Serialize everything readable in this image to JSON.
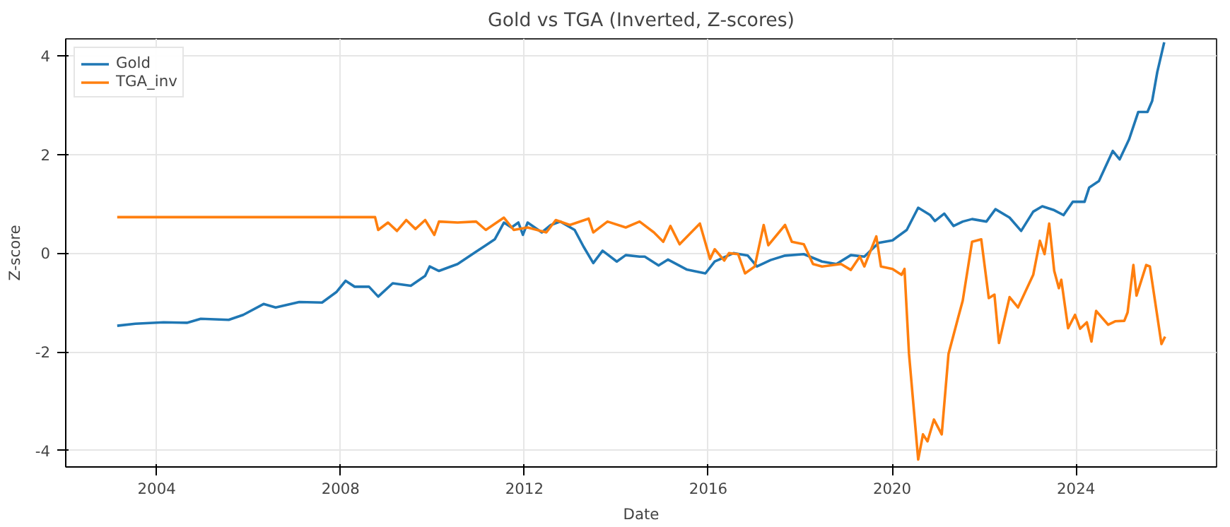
{
  "chart_data": {
    "type": "line",
    "title": "Gold vs TGA (Inverted, Z-scores)",
    "xlabel": "Date",
    "ylabel": "Z-score",
    "xlim": [
      "2002-01-08",
      "2027-01-22"
    ],
    "ylim": [
      -4.33,
      4.34
    ],
    "xticks": [
      {
        "value": "2004-01-01",
        "label": "2004"
      },
      {
        "value": "2008-01-01",
        "label": "2008"
      },
      {
        "value": "2012-01-01",
        "label": "2012"
      },
      {
        "value": "2016-01-01",
        "label": "2016"
      },
      {
        "value": "2020-01-01",
        "label": "2020"
      },
      {
        "value": "2024-01-01",
        "label": "2024"
      }
    ],
    "yticks": [
      -4,
      -2,
      0,
      2,
      4
    ],
    "grid": true,
    "legend": "top left",
    "line_style": "solid",
    "series": [
      {
        "name": "Gold",
        "color": "#1f77b4",
        "x": [
          "2003-02-21",
          "2003-07-15",
          "2004-02-25",
          "2004-08-28",
          "2004-12-16",
          "2005-07-26",
          "2005-11-18",
          "2006-04-29",
          "2006-08-03",
          "2007-02-07",
          "2007-08-07",
          "2007-11-28",
          "2008-02-10",
          "2008-04-22",
          "2008-08-14",
          "2008-10-26",
          "2009-02-18",
          "2009-07-12",
          "2009-11-03",
          "2009-12-09",
          "2010-02-21",
          "2010-07-19",
          "2010-12-13",
          "2011-02-28",
          "2011-05-10",
          "2011-07-22",
          "2011-09-20",
          "2011-11-14",
          "2011-12-20",
          "2012-01-26",
          "2012-05-18",
          "2012-07-29",
          "2012-10-12",
          "2013-02-03",
          "2013-04-15",
          "2013-07-01",
          "2013-09-13",
          "2014-01-04",
          "2014-03-16",
          "2014-07-04",
          "2014-08-14",
          "2014-12-02",
          "2015-02-14",
          "2015-07-12",
          "2015-12-09",
          "2016-02-21",
          "2016-07-19",
          "2016-11-10",
          "2017-01-22",
          "2017-05-10",
          "2017-09-02",
          "2018-01-29",
          "2018-06-23",
          "2018-10-15",
          "2019-02-07",
          "2019-05-25",
          "2019-09-16",
          "2020-01-04",
          "2020-04-26",
          "2020-07-26",
          "2020-10-30",
          "2020-12-06",
          "2021-02-18",
          "2021-05-03",
          "2021-07-15",
          "2021-09-27",
          "2022-01-19",
          "2022-04-01",
          "2022-07-22",
          "2022-10-22",
          "2023-01-26",
          "2023-04-08",
          "2023-07-12",
          "2023-09-24",
          "2023-12-06",
          "2024-03-09",
          "2024-04-15",
          "2024-07-01",
          "2024-10-19",
          "2024-12-13",
          "2025-02-25",
          "2025-05-10",
          "2025-07-22",
          "2025-08-28",
          "2025-10-08",
          "2025-12-02"
        ],
        "values": [
          -1.47,
          -1.43,
          -1.4,
          -1.41,
          -1.33,
          -1.35,
          -1.25,
          -1.03,
          -1.1,
          -0.99,
          -1.0,
          -0.79,
          -0.56,
          -0.68,
          -0.68,
          -0.88,
          -0.61,
          -0.66,
          -0.46,
          -0.27,
          -0.36,
          -0.22,
          0.03,
          0.16,
          0.28,
          0.62,
          0.52,
          0.62,
          0.37,
          0.62,
          0.42,
          0.57,
          0.64,
          0.47,
          0.13,
          -0.2,
          0.05,
          -0.17,
          -0.04,
          -0.07,
          -0.07,
          -0.25,
          -0.13,
          -0.33,
          -0.41,
          -0.17,
          0.0,
          -0.05,
          -0.27,
          -0.14,
          -0.05,
          -0.02,
          -0.17,
          -0.22,
          -0.04,
          -0.07,
          0.21,
          0.26,
          0.47,
          0.92,
          0.77,
          0.65,
          0.8,
          0.55,
          0.64,
          0.69,
          0.64,
          0.89,
          0.72,
          0.45,
          0.84,
          0.95,
          0.87,
          0.77,
          1.04,
          1.04,
          1.33,
          1.46,
          2.07,
          1.9,
          2.3,
          2.86,
          2.86,
          3.08,
          3.67,
          4.27
        ]
      },
      {
        "name": "TGA_inv",
        "color": "#ff7f0e",
        "x": [
          "2003-02-21",
          "2008-10-01",
          "2008-10-26",
          "2009-01-12",
          "2009-03-24",
          "2009-06-06",
          "2009-08-18",
          "2009-11-03",
          "2010-01-15",
          "2010-02-21",
          "2010-07-19",
          "2010-12-13",
          "2011-02-28",
          "2011-07-22",
          "2011-10-08",
          "2012-01-26",
          "2012-06-23",
          "2012-09-06",
          "2012-12-27",
          "2013-05-25",
          "2013-07-01",
          "2013-10-22",
          "2014-03-16",
          "2014-07-04",
          "2014-10-26",
          "2015-01-08",
          "2015-03-06",
          "2015-05-18",
          "2015-08-18",
          "2015-10-26",
          "2016-01-15",
          "2016-02-21",
          "2016-05-07",
          "2016-06-13",
          "2016-08-25",
          "2016-10-19",
          "2017-01-04",
          "2017-03-16",
          "2017-04-22",
          "2017-09-02",
          "2017-10-26",
          "2018-01-29",
          "2018-04-12",
          "2018-06-23",
          "2018-11-21",
          "2019-02-07",
          "2019-04-19",
          "2019-05-25",
          "2019-08-28",
          "2019-10-04",
          "2020-01-04",
          "2020-03-16",
          "2020-04-08",
          "2020-05-14",
          "2020-07-26",
          "2020-09-02",
          "2020-10-08",
          "2020-11-28",
          "2021-01-29",
          "2021-03-24",
          "2021-06-09",
          "2021-07-15",
          "2021-09-27",
          "2021-12-09",
          "2022-02-07",
          "2022-03-24",
          "2022-04-29",
          "2022-07-22",
          "2022-09-27",
          "2023-01-26",
          "2023-03-20",
          "2023-04-26",
          "2023-06-02",
          "2023-07-12",
          "2023-08-18",
          "2023-09-06",
          "2023-10-30",
          "2023-12-24",
          "2024-02-03",
          "2024-03-27",
          "2024-05-03",
          "2024-06-09",
          "2024-09-13",
          "2024-11-07",
          "2025-01-19",
          "2025-02-14",
          "2025-04-01",
          "2025-04-26",
          "2025-07-12",
          "2025-08-10",
          "2025-11-10",
          "2025-12-09"
        ],
        "values": [
          0.73,
          0.73,
          0.47,
          0.62,
          0.45,
          0.67,
          0.49,
          0.67,
          0.37,
          0.64,
          0.62,
          0.64,
          0.47,
          0.72,
          0.47,
          0.52,
          0.42,
          0.67,
          0.57,
          0.7,
          0.42,
          0.64,
          0.52,
          0.64,
          0.42,
          0.23,
          0.55,
          0.18,
          0.42,
          0.6,
          -0.12,
          0.08,
          -0.15,
          0.0,
          -0.02,
          -0.41,
          -0.27,
          0.57,
          0.16,
          0.57,
          0.23,
          0.18,
          -0.22,
          -0.27,
          -0.22,
          -0.34,
          -0.07,
          -0.27,
          0.34,
          -0.27,
          -0.32,
          -0.44,
          -0.32,
          -2.04,
          -4.18,
          -3.67,
          -3.81,
          -3.37,
          -3.67,
          -2.04,
          -1.3,
          -0.96,
          0.23,
          0.28,
          -0.91,
          -0.84,
          -1.82,
          -0.89,
          -1.1,
          -0.44,
          0.25,
          -0.02,
          0.6,
          -0.36,
          -0.71,
          -0.54,
          -1.52,
          -1.25,
          -1.53,
          -1.4,
          -1.79,
          -1.17,
          -1.45,
          -1.38,
          -1.37,
          -1.2,
          -0.24,
          -0.86,
          -0.24,
          -0.27,
          -1.84,
          -1.69
        ]
      }
    ]
  }
}
